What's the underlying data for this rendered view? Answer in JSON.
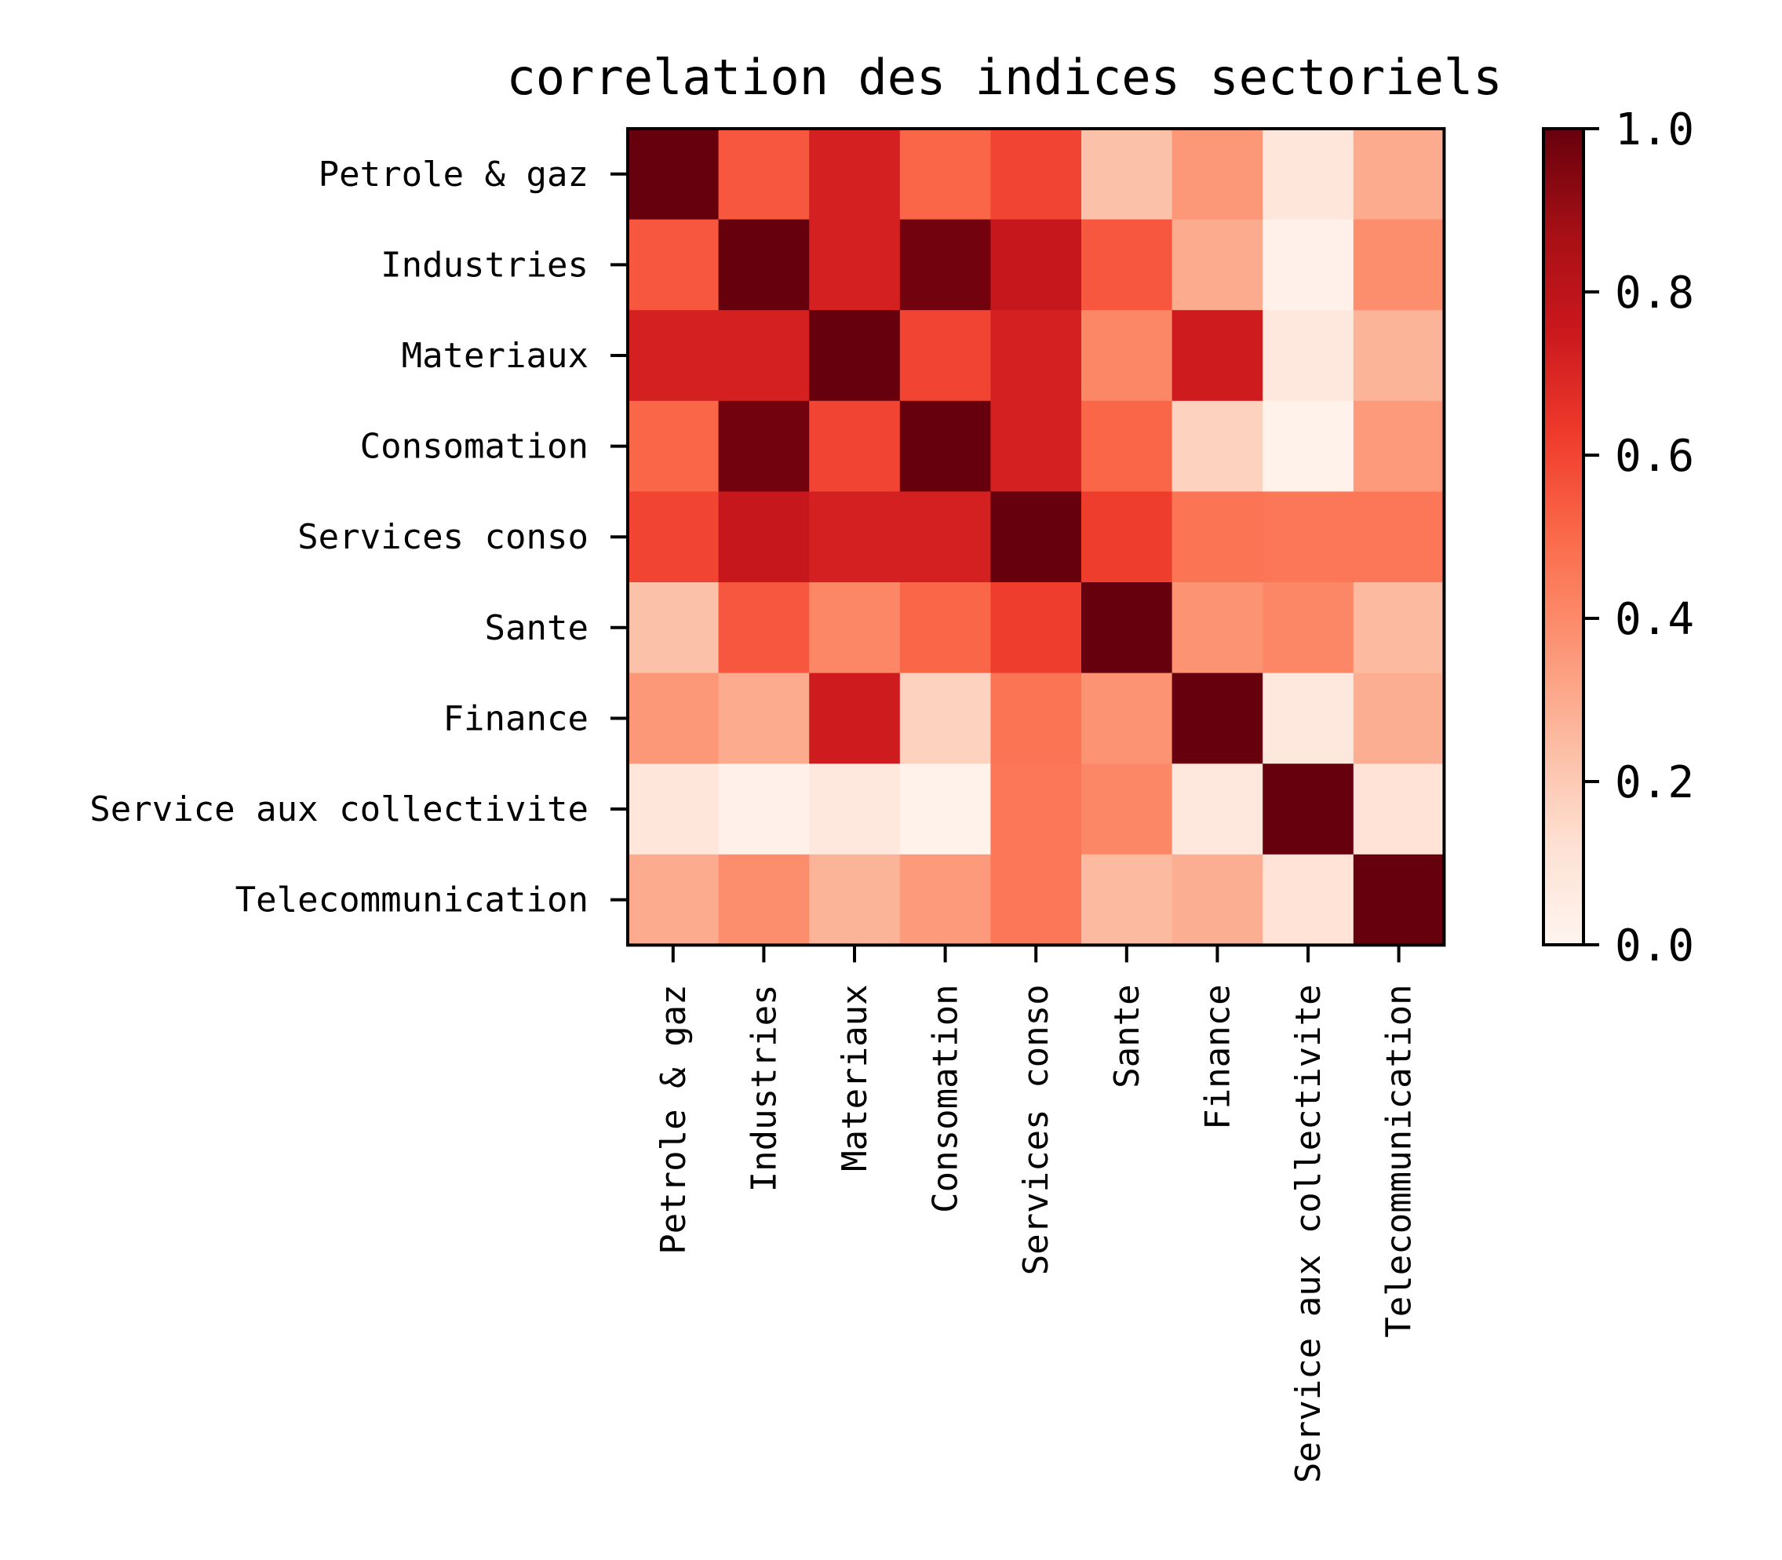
{
  "chart_data": {
    "type": "heatmap",
    "title": "correlation des indices sectoriels",
    "xlabel": "",
    "ylabel": "",
    "categories": [
      "Petrole & gaz",
      "Industries",
      "Materiaux",
      "Consomation",
      "Services conso",
      "Sante",
      "Finance",
      "Service aux collectivite",
      "Telecommunication"
    ],
    "values": [
      [
        1.0,
        0.55,
        0.72,
        0.51,
        0.6,
        0.23,
        0.36,
        0.09,
        0.3
      ],
      [
        0.55,
        1.0,
        0.72,
        0.98,
        0.77,
        0.55,
        0.3,
        0.03,
        0.39
      ],
      [
        0.72,
        0.72,
        1.0,
        0.6,
        0.72,
        0.41,
        0.74,
        0.08,
        0.27
      ],
      [
        0.51,
        0.98,
        0.6,
        1.0,
        0.72,
        0.51,
        0.17,
        0.02,
        0.35
      ],
      [
        0.6,
        0.77,
        0.72,
        0.72,
        1.0,
        0.62,
        0.47,
        0.46,
        0.46
      ],
      [
        0.23,
        0.55,
        0.41,
        0.51,
        0.62,
        1.0,
        0.37,
        0.41,
        0.25
      ],
      [
        0.36,
        0.3,
        0.74,
        0.17,
        0.47,
        0.37,
        1.0,
        0.08,
        0.29
      ],
      [
        0.09,
        0.03,
        0.08,
        0.02,
        0.46,
        0.41,
        0.08,
        1.0,
        0.11
      ],
      [
        0.3,
        0.39,
        0.27,
        0.35,
        0.46,
        0.25,
        0.29,
        0.11,
        1.0
      ]
    ],
    "colormap": "Reds",
    "colorbar": {
      "range": [
        0.0,
        1.0
      ],
      "ticks": [
        "0.0",
        "0.2",
        "0.4",
        "0.6",
        "0.8",
        "1.0"
      ]
    },
    "grid": false
  }
}
